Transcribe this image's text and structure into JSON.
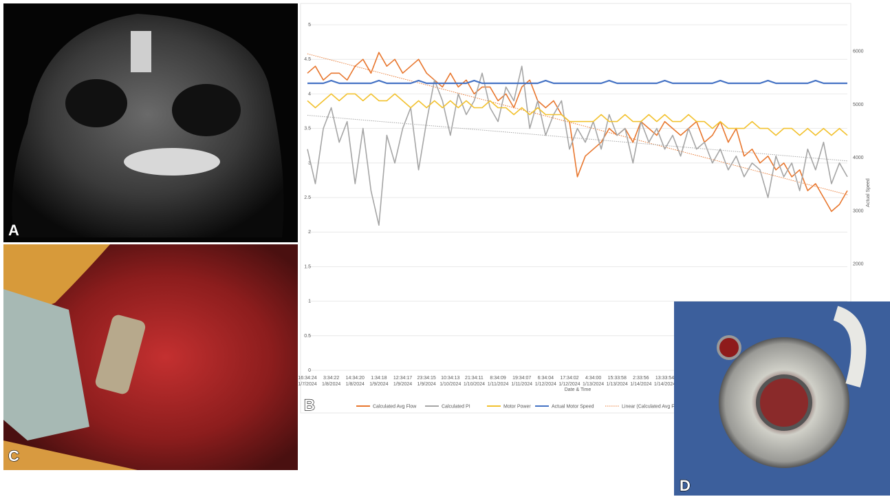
{
  "panel_labels": [
    "A",
    "B",
    "C",
    "D"
  ],
  "chart_data": {
    "type": "line",
    "x_axis_label": "Date & Time",
    "y2_axis_label": "Actual Speed",
    "categories": [
      [
        "16:34:24",
        "1/7/2024"
      ],
      null,
      null,
      [
        "3:34:22",
        "1/8/2024"
      ],
      null,
      null,
      [
        "14:34:20",
        "1/8/2024"
      ],
      null,
      null,
      [
        "1:34:18",
        "1/9/2024"
      ],
      null,
      null,
      [
        "12:34:17",
        "1/9/2024"
      ],
      null,
      null,
      [
        "23:34:15",
        "1/9/2024"
      ],
      null,
      null,
      [
        "10:34:13",
        "1/10/2024"
      ],
      null,
      null,
      [
        "21:34:11",
        "1/10/2024"
      ],
      null,
      null,
      [
        "8:34:09",
        "1/11/2024"
      ],
      null,
      null,
      [
        "19:34:07",
        "1/11/2024"
      ],
      null,
      null,
      [
        "6:34:04",
        "1/12/2024"
      ],
      null,
      null,
      [
        "17:34:02",
        "1/12/2024"
      ],
      null,
      null,
      [
        "4:34:00",
        "1/13/2024"
      ],
      null,
      null,
      [
        "15:33:58",
        "1/13/2024"
      ],
      null,
      null,
      [
        "2:33:56",
        "1/14/2024"
      ],
      null,
      null,
      [
        "13:33:54",
        "1/14/2024"
      ],
      null,
      null,
      null,
      null,
      null,
      null,
      null,
      null,
      null,
      null,
      null,
      null,
      null,
      null,
      null,
      null,
      null,
      null,
      null,
      null,
      null,
      null,
      null
    ],
    "series": [
      {
        "name": "Calculated Avg Flow",
        "color": "#e8762d",
        "values": [
          4.3,
          4.4,
          4.2,
          4.3,
          4.3,
          4.2,
          4.4,
          4.5,
          4.3,
          4.6,
          4.4,
          4.5,
          4.3,
          4.4,
          4.5,
          4.3,
          4.2,
          4.1,
          4.3,
          4.1,
          4.2,
          4.0,
          4.1,
          4.1,
          3.9,
          4.0,
          3.8,
          4.1,
          4.2,
          3.9,
          3.8,
          3.9,
          3.7,
          3.6,
          2.8,
          3.1,
          3.2,
          3.3,
          3.5,
          3.4,
          3.5,
          3.3,
          3.6,
          3.5,
          3.4,
          3.6,
          3.5,
          3.4,
          3.5,
          3.6,
          3.3,
          3.4,
          3.6,
          3.3,
          3.5,
          3.1,
          3.2,
          3.0,
          3.1,
          2.9,
          3.0,
          2.8,
          2.9,
          2.6,
          2.7,
          2.5,
          2.3,
          2.4,
          2.6
        ]
      },
      {
        "name": "Calculated PI",
        "color": "#a5a5a5",
        "values": [
          3.2,
          2.7,
          3.5,
          3.8,
          3.3,
          3.6,
          2.7,
          3.5,
          2.6,
          2.1,
          3.4,
          3.0,
          3.5,
          3.8,
          2.9,
          3.6,
          4.2,
          3.9,
          3.4,
          4.0,
          3.7,
          3.9,
          4.3,
          3.8,
          3.6,
          4.1,
          3.9,
          4.4,
          3.5,
          3.9,
          3.4,
          3.7,
          3.9,
          3.2,
          3.5,
          3.3,
          3.6,
          3.2,
          3.7,
          3.4,
          3.5,
          3.0,
          3.6,
          3.3,
          3.5,
          3.2,
          3.4,
          3.1,
          3.5,
          3.2,
          3.3,
          3.0,
          3.2,
          2.9,
          3.1,
          2.8,
          3.0,
          2.9,
          2.5,
          3.1,
          2.8,
          3.0,
          2.6,
          3.2,
          2.9,
          3.3,
          2.7,
          3.0,
          2.8
        ]
      },
      {
        "name": "Motor Power",
        "color": "#f2c12e",
        "values": [
          3.9,
          3.8,
          3.9,
          4.0,
          3.9,
          4.0,
          4.0,
          3.9,
          4.0,
          3.9,
          3.9,
          4.0,
          3.9,
          3.8,
          3.9,
          3.8,
          3.9,
          3.8,
          3.9,
          3.8,
          3.9,
          3.8,
          3.8,
          3.9,
          3.8,
          3.8,
          3.7,
          3.8,
          3.7,
          3.8,
          3.7,
          3.7,
          3.7,
          3.6,
          3.6,
          3.6,
          3.6,
          3.7,
          3.6,
          3.6,
          3.7,
          3.6,
          3.6,
          3.7,
          3.6,
          3.7,
          3.6,
          3.6,
          3.7,
          3.6,
          3.6,
          3.5,
          3.6,
          3.5,
          3.5,
          3.5,
          3.6,
          3.5,
          3.5,
          3.4,
          3.5,
          3.5,
          3.4,
          3.5,
          3.4,
          3.5,
          3.4,
          3.5,
          3.4
        ]
      },
      {
        "name": "Actual Motor Speed",
        "color": "#4472c4",
        "axis": "y2",
        "values": [
          5400,
          5400,
          5400,
          5450,
          5400,
          5400,
          5400,
          5400,
          5400,
          5450,
          5400,
          5400,
          5400,
          5400,
          5450,
          5400,
          5400,
          5400,
          5400,
          5400,
          5400,
          5450,
          5400,
          5400,
          5400,
          5400,
          5400,
          5400,
          5400,
          5400,
          5450,
          5400,
          5400,
          5400,
          5400,
          5400,
          5400,
          5400,
          5450,
          5400,
          5400,
          5400,
          5400,
          5400,
          5400,
          5450,
          5400,
          5400,
          5400,
          5400,
          5400,
          5400,
          5450,
          5400,
          5400,
          5400,
          5400,
          5400,
          5450,
          5400,
          5400,
          5400,
          5400,
          5400,
          5450,
          5400,
          5400,
          5400,
          5400
        ]
      }
    ],
    "trendlines": [
      {
        "name": "Linear (Calculated Avg Flo",
        "color": "#e8762d",
        "start": 4.58,
        "end": 2.54
      },
      {
        "color": "#a5a5a5",
        "start": 3.69,
        "end": 3.03
      }
    ],
    "ylim": [
      0,
      5
    ],
    "yticks": [
      0,
      0.5,
      1,
      1.5,
      2,
      2.5,
      3,
      3.5,
      4,
      4.5,
      5
    ],
    "y2lim": [
      0,
      6500
    ],
    "y2ticks": [
      2000,
      3000,
      4000,
      5000,
      6000
    ],
    "grid": true
  }
}
